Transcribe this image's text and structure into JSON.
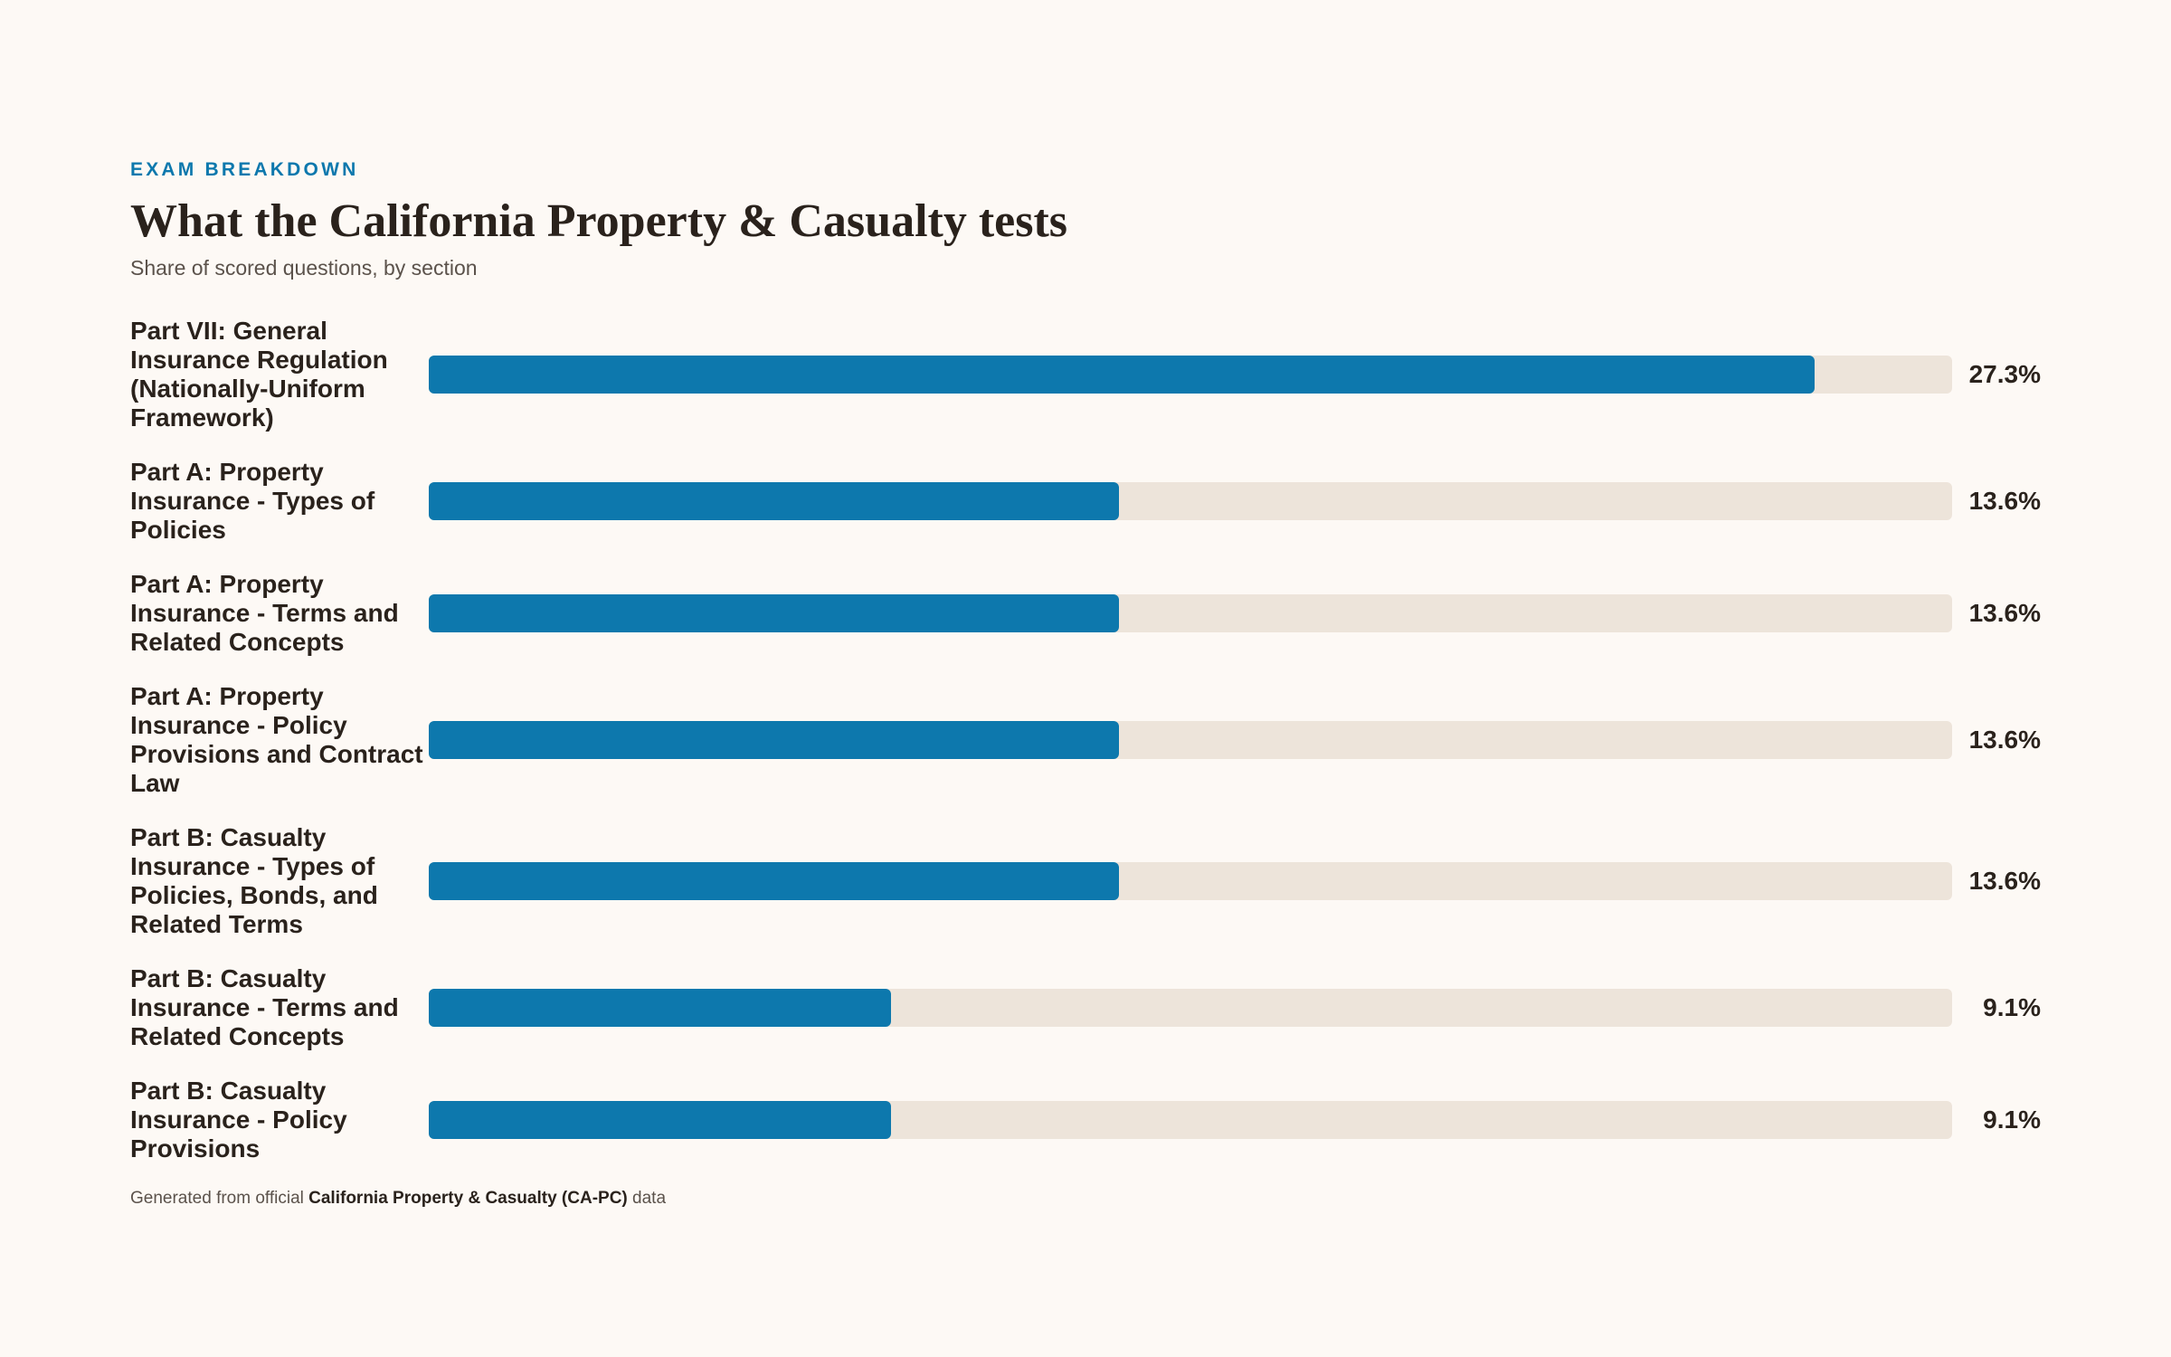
{
  "header": {
    "eyebrow": "EXAM BREAKDOWN",
    "title": "What the California Property & Casualty tests",
    "subtitle": "Share of scored questions, by section"
  },
  "colors": {
    "bar": "#0d78ad",
    "track": "#ede4da",
    "background": "#fdf9f5"
  },
  "chart_data": {
    "type": "bar",
    "orientation": "horizontal",
    "title": "What the California Property & Casualty tests",
    "subtitle": "Share of scored questions, by section",
    "xlim": [
      0,
      30
    ],
    "categories": [
      "Part VII: General Insurance Regulation (Nationally-Uniform Framework)",
      "Part A: Property Insurance - Types of Policies",
      "Part A: Property Insurance - Terms and Related Concepts",
      "Part A: Property Insurance - Policy Provisions and Contract Law",
      "Part B: Casualty Insurance - Types of Policies, Bonds, and Related Terms",
      "Part B: Casualty Insurance - Terms and Related Concepts",
      "Part B: Casualty Insurance - Policy Provisions"
    ],
    "values": [
      27.3,
      13.6,
      13.6,
      13.6,
      13.6,
      9.1,
      9.1
    ],
    "value_labels": [
      "27.3%",
      "13.6%",
      "13.6%",
      "13.6%",
      "13.6%",
      "9.1%",
      "9.1%"
    ],
    "grid": false
  },
  "footer": {
    "prefix": "Generated from official",
    "source": "California Property & Casualty (CA-PC)",
    "suffix": "data"
  }
}
